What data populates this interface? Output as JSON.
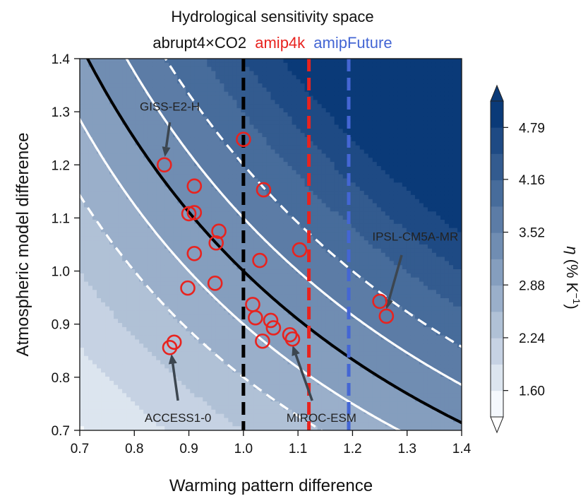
{
  "chart_data": {
    "type": "contour",
    "title": "Hydrological sensitivity space",
    "subtitle": [
      {
        "text": "abrupt4×CO2",
        "color": "#111111"
      },
      {
        "text": "amip4k",
        "color": "#e8231f"
      },
      {
        "text": "amipFuture",
        "color": "#4466d4"
      }
    ],
    "xlabel": "Warming pattern difference",
    "ylabel": "Atmospheric model difference",
    "xlim": [
      0.7,
      1.4
    ],
    "ylim": [
      0.7,
      1.4
    ],
    "xticks": [
      "0.7",
      "0.8",
      "0.9",
      "1.0",
      "1.1",
      "1.2",
      "1.3",
      "1.4"
    ],
    "yticks": [
      "0.7",
      "0.8",
      "0.9",
      "1.0",
      "1.1",
      "1.2",
      "1.3",
      "1.4"
    ],
    "colorbar": {
      "label_symbol": "η",
      "label_units": " (% K",
      "label_exp": "−1",
      "label_close": ")",
      "ticks": [
        "1.60",
        "2.24",
        "2.88",
        "3.52",
        "4.16",
        "4.79"
      ],
      "tick_values": [
        1.6,
        2.24,
        2.88,
        3.52,
        4.16,
        4.79
      ],
      "range": [
        1.28,
        5.11
      ],
      "levels": 12,
      "color_low": "#f4f8fd",
      "color_high": "#0a3a78"
    },
    "field": {
      "base_value": 3.2
    },
    "isolines": [
      {
        "product": 1.0,
        "style": "solid",
        "color": "#000000"
      },
      {
        "product": 1.1,
        "style": "solid",
        "color": "#ffffff"
      },
      {
        "product": 0.9,
        "style": "solid",
        "color": "#ffffff"
      },
      {
        "product": 1.2,
        "style": "dashed",
        "color": "#ffffff"
      },
      {
        "product": 0.8,
        "style": "dashed",
        "color": "#ffffff"
      }
    ],
    "vlines": [
      {
        "name": "abrupt4×CO2",
        "x": 1.0,
        "color": "#000000"
      },
      {
        "name": "amip4k",
        "x": 1.12,
        "color": "#e8231f"
      },
      {
        "name": "amipFuture",
        "x": 1.193,
        "color": "#4466d4"
      }
    ],
    "points": [
      {
        "x": 0.855,
        "y": 1.2
      },
      {
        "x": 0.91,
        "y": 1.16
      },
      {
        "x": 0.9,
        "y": 1.108
      },
      {
        "x": 0.91,
        "y": 1.11
      },
      {
        "x": 0.955,
        "y": 1.075
      },
      {
        "x": 0.91,
        "y": 1.033
      },
      {
        "x": 0.95,
        "y": 1.053
      },
      {
        "x": 0.898,
        "y": 0.968
      },
      {
        "x": 0.948,
        "y": 0.977
      },
      {
        "x": 1.0,
        "y": 1.248
      },
      {
        "x": 1.037,
        "y": 1.153
      },
      {
        "x": 1.03,
        "y": 1.02
      },
      {
        "x": 1.103,
        "y": 1.04
      },
      {
        "x": 1.017,
        "y": 0.937
      },
      {
        "x": 1.022,
        "y": 0.912
      },
      {
        "x": 1.05,
        "y": 0.907
      },
      {
        "x": 1.055,
        "y": 0.893
      },
      {
        "x": 1.035,
        "y": 0.868
      },
      {
        "x": 1.085,
        "y": 0.88
      },
      {
        "x": 1.09,
        "y": 0.872
      },
      {
        "x": 1.25,
        "y": 0.943
      },
      {
        "x": 1.262,
        "y": 0.915
      },
      {
        "x": 0.873,
        "y": 0.866
      },
      {
        "x": 0.865,
        "y": 0.856
      }
    ],
    "annotations": [
      {
        "text": "GISS-E2-H",
        "text_x": 0.865,
        "text_y": 1.31,
        "anchor": "middle",
        "arrow_from": [
          0.865,
          1.28
        ],
        "arrow_to": [
          0.856,
          1.215
        ]
      },
      {
        "text": "IPSL-CM5A-MR",
        "text_x": 1.315,
        "text_y": 1.065,
        "anchor": "middle",
        "arrow_from": [
          1.29,
          1.03
        ],
        "arrow_to": [
          1.262,
          0.928
        ]
      },
      {
        "text": "ACCESS1-0",
        "text_x": 0.88,
        "text_y": 0.724,
        "anchor": "middle",
        "arrow_from": [
          0.88,
          0.756
        ],
        "arrow_to": [
          0.868,
          0.844
        ]
      },
      {
        "text": "MIROC-ESM",
        "text_x": 1.143,
        "text_y": 0.724,
        "anchor": "middle",
        "arrow_from": [
          1.126,
          0.756
        ],
        "arrow_to": [
          1.09,
          0.86
        ]
      }
    ]
  }
}
